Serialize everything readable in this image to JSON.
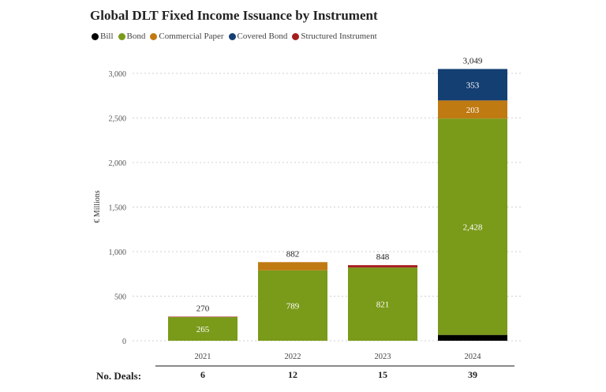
{
  "chart_data": {
    "type": "bar",
    "stacked": true,
    "title": "Global DLT Fixed Income Issuance by Instrument",
    "ylabel": "€ Millions",
    "xlabel": "",
    "ylim": [
      0,
      3000
    ],
    "yticks": [
      0,
      500,
      1000,
      1500,
      2000,
      2500,
      3000
    ],
    "ytick_labels": [
      "0",
      "500",
      "1,000",
      "1,500",
      "2,000",
      "2,500",
      "3,000"
    ],
    "grid": true,
    "legend_position": "top-left",
    "categories": [
      "2021",
      "2022",
      "2023",
      "2024"
    ],
    "series": [
      {
        "name": "Bill",
        "color": "#000000",
        "values": [
          0,
          0,
          0,
          65
        ]
      },
      {
        "name": "Bond",
        "color": "#7a9a1a",
        "values": [
          265,
          789,
          821,
          2428
        ],
        "labels": [
          "265",
          "789",
          "821",
          "2,428"
        ]
      },
      {
        "name": "Commercial Paper",
        "color": "#c07a12",
        "values": [
          0,
          93,
          0,
          203
        ],
        "labels": [
          "",
          "",
          "",
          "203"
        ]
      },
      {
        "name": "Covered Bond",
        "color": "#143f73",
        "values": [
          0,
          0,
          0,
          353
        ],
        "labels": [
          "",
          "",
          "",
          "353"
        ]
      },
      {
        "name": "Structured Instrument",
        "color": "#a51d1d",
        "values": [
          5,
          0,
          27,
          0
        ]
      }
    ],
    "totals": [
      "270",
      "882",
      "848",
      "3,049"
    ],
    "deals_label": "No. Deals:",
    "deals": [
      "6",
      "12",
      "15",
      "39"
    ]
  }
}
